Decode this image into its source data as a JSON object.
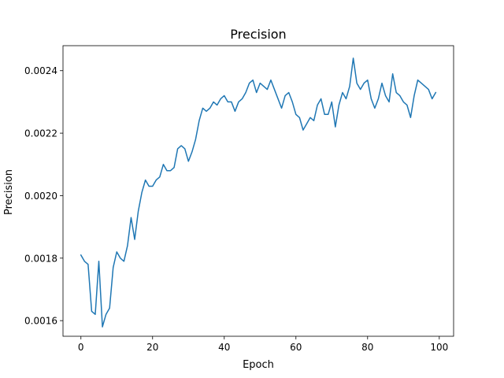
{
  "chart_data": {
    "type": "line",
    "title": "Precision",
    "xlabel": "Epoch",
    "ylabel": "Precision",
    "xlim": [
      -5,
      104
    ],
    "ylim": [
      0.00155,
      0.00248
    ],
    "xticks": [
      0,
      20,
      40,
      60,
      80,
      100
    ],
    "xtick_labels": [
      "0",
      "20",
      "40",
      "60",
      "80",
      "100"
    ],
    "yticks": [
      0.0016,
      0.0018,
      0.002,
      0.0022,
      0.0024
    ],
    "ytick_labels": [
      "0.0016",
      "0.0018",
      "0.0020",
      "0.0022",
      "0.0024"
    ],
    "grid": false,
    "series_color": "#1f77b4",
    "series": [
      {
        "x": [
          0,
          1,
          2,
          3,
          4,
          5,
          6,
          7,
          8,
          9,
          10,
          11,
          12,
          13,
          14,
          15,
          16,
          17,
          18,
          19,
          20,
          21,
          22,
          23,
          24,
          25,
          26,
          27,
          28,
          29,
          30,
          31,
          32,
          33,
          34,
          35,
          36,
          37,
          38,
          39,
          40,
          41,
          42,
          43,
          44,
          45,
          46,
          47,
          48,
          49,
          50,
          51,
          52,
          53,
          54,
          55,
          56,
          57,
          58,
          59,
          60,
          61,
          62,
          63,
          64,
          65,
          66,
          67,
          68,
          69,
          70,
          71,
          72,
          73,
          74,
          75,
          76,
          77,
          78,
          79,
          80,
          81,
          82,
          83,
          84,
          85,
          86,
          87,
          88,
          89,
          90,
          91,
          92,
          93,
          94,
          95,
          96,
          97,
          98,
          99
        ],
        "values": [
          0.00181,
          0.00179,
          0.00178,
          0.00163,
          0.00162,
          0.00179,
          0.00158,
          0.00162,
          0.00164,
          0.00177,
          0.00182,
          0.0018,
          0.00179,
          0.00184,
          0.00193,
          0.00186,
          0.00195,
          0.00201,
          0.00205,
          0.00203,
          0.00203,
          0.00205,
          0.00206,
          0.0021,
          0.00208,
          0.00208,
          0.00209,
          0.00215,
          0.00216,
          0.00215,
          0.00211,
          0.00214,
          0.00218,
          0.00224,
          0.00228,
          0.00227,
          0.00228,
          0.0023,
          0.00229,
          0.00231,
          0.00232,
          0.0023,
          0.0023,
          0.00227,
          0.0023,
          0.00231,
          0.00233,
          0.00236,
          0.00237,
          0.00233,
          0.00236,
          0.00235,
          0.00234,
          0.00237,
          0.00234,
          0.00231,
          0.00228,
          0.00232,
          0.00233,
          0.0023,
          0.00226,
          0.00225,
          0.00221,
          0.00223,
          0.00225,
          0.00224,
          0.00229,
          0.00231,
          0.00226,
          0.00226,
          0.0023,
          0.00222,
          0.00229,
          0.00233,
          0.00231,
          0.00235,
          0.00244,
          0.00236,
          0.00234,
          0.00236,
          0.00237,
          0.00231,
          0.00228,
          0.00231,
          0.00236,
          0.00232,
          0.0023,
          0.00239,
          0.00233,
          0.00232,
          0.0023,
          0.00229,
          0.00225,
          0.00232,
          0.00237,
          0.00236,
          0.00235,
          0.00234,
          0.00231,
          0.00233
        ]
      }
    ]
  }
}
